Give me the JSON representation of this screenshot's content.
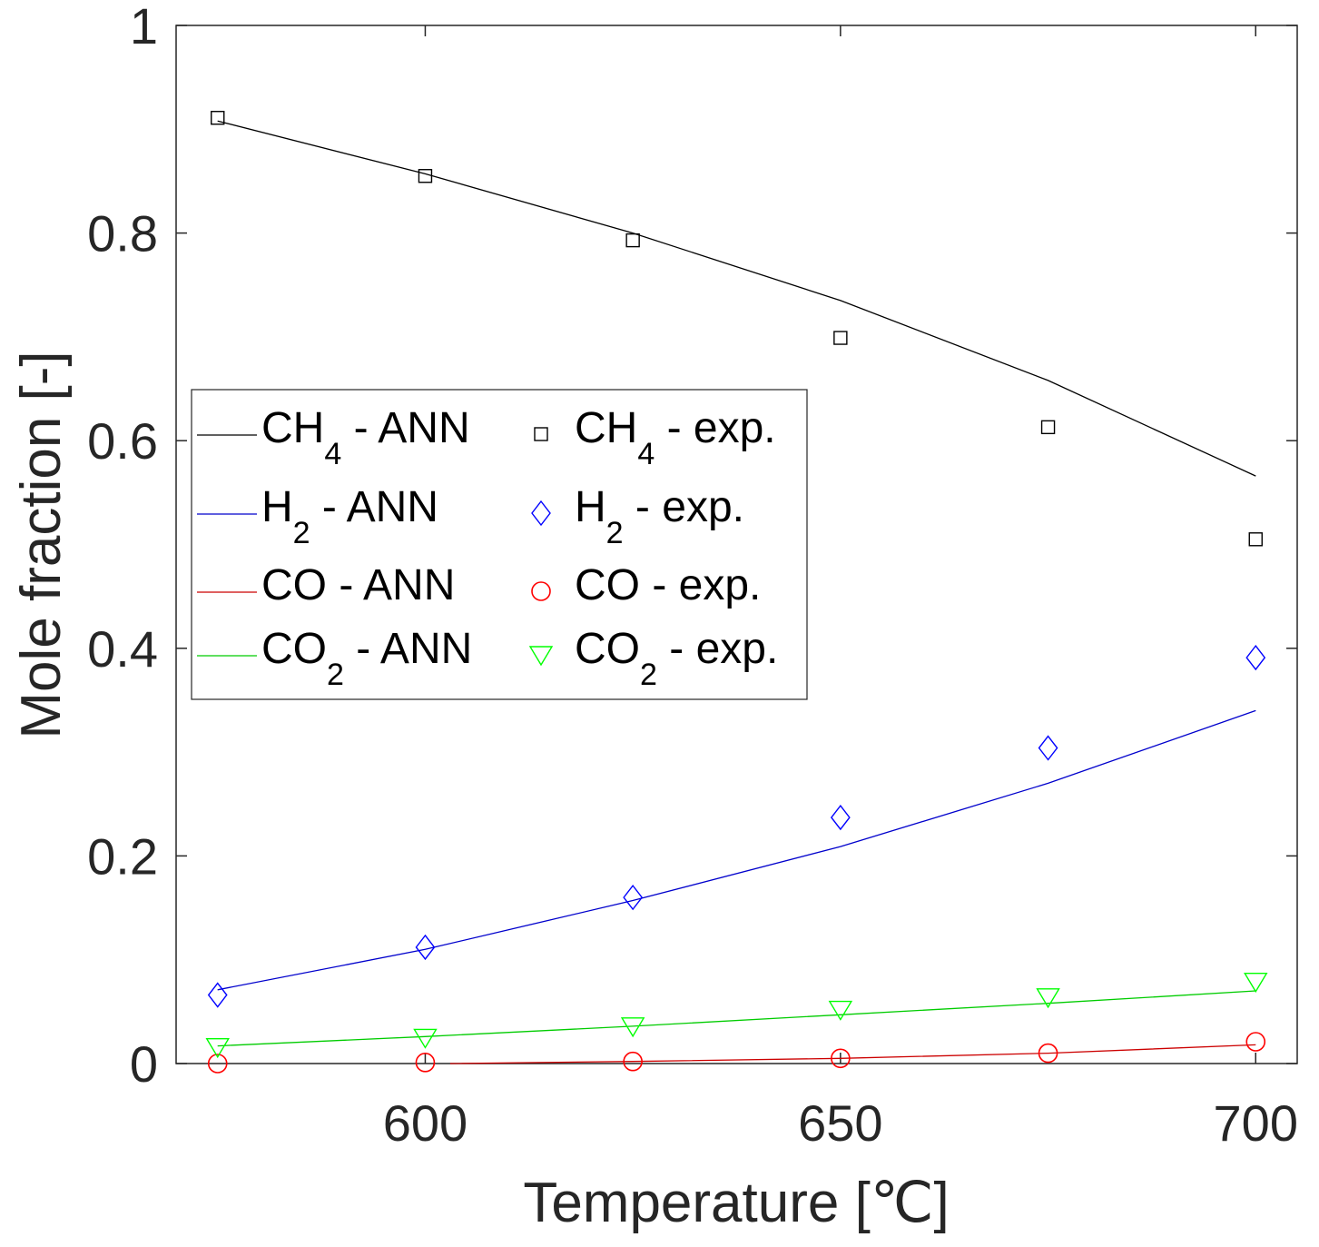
{
  "chart_data": {
    "type": "line",
    "title": "",
    "xlabel": "Temperature [℃]",
    "ylabel": "Mole fraction [-]",
    "xlim": [
      570,
      705
    ],
    "ylim": [
      0,
      1
    ],
    "xticks": [
      600,
      650,
      700
    ],
    "xtick_labels": [
      "600",
      "650",
      "700"
    ],
    "yticks": [
      0,
      0.2,
      0.4,
      0.6,
      0.8,
      1
    ],
    "ytick_labels": [
      "0",
      "0.2",
      "0.4",
      "0.6",
      "0.8",
      "1"
    ],
    "grid": false,
    "legend_position": "upper-left",
    "x": [
      575,
      600,
      625,
      650,
      675,
      700
    ],
    "series": [
      {
        "name": "CH4 - ANN",
        "kind": "line",
        "color": "#000000",
        "x": [
          575,
          600,
          625,
          650,
          675,
          700
        ],
        "values": [
          0.908,
          0.857,
          0.8,
          0.735,
          0.658,
          0.566
        ]
      },
      {
        "name": "H2 - ANN",
        "kind": "line",
        "color": "#0000cc",
        "x": [
          575,
          600,
          625,
          650,
          675,
          700
        ],
        "values": [
          0.071,
          0.11,
          0.157,
          0.209,
          0.27,
          0.34
        ]
      },
      {
        "name": "CO - ANN",
        "kind": "line",
        "color": "#cc0000",
        "x": [
          603,
          625,
          650,
          675,
          700
        ],
        "values": [
          0.0,
          0.002,
          0.005,
          0.01,
          0.018
        ]
      },
      {
        "name": "CO2 - ANN",
        "kind": "line",
        "color": "#00cc00",
        "x": [
          575,
          600,
          625,
          650,
          675,
          700
        ],
        "values": [
          0.017,
          0.026,
          0.036,
          0.047,
          0.058,
          0.07
        ]
      },
      {
        "name": "CH4 - exp.",
        "kind": "marker",
        "marker": "square",
        "color": "#000000",
        "x": [
          575,
          600,
          625,
          650,
          675,
          700
        ],
        "values": [
          0.911,
          0.855,
          0.793,
          0.699,
          0.613,
          0.505
        ]
      },
      {
        "name": "H2 - exp.",
        "kind": "marker",
        "marker": "diamond",
        "color": "#0000ff",
        "x": [
          575,
          600,
          625,
          650,
          675,
          700
        ],
        "values": [
          0.066,
          0.112,
          0.16,
          0.237,
          0.304,
          0.391
        ]
      },
      {
        "name": "CO - exp.",
        "kind": "marker",
        "marker": "circle",
        "color": "#ff0000",
        "x": [
          575,
          600,
          625,
          650,
          675,
          700
        ],
        "values": [
          0.0,
          0.001,
          0.002,
          0.005,
          0.01,
          0.021
        ]
      },
      {
        "name": "CO2 - exp.",
        "kind": "marker",
        "marker": "triangle-down",
        "color": "#00ff00",
        "x": [
          575,
          600,
          625,
          650,
          675,
          700
        ],
        "values": [
          0.016,
          0.025,
          0.036,
          0.052,
          0.064,
          0.079
        ]
      }
    ],
    "legend": [
      {
        "base": "CH",
        "sub": "4",
        "suffix": " - ANN"
      },
      {
        "base": "H",
        "sub": "2",
        "suffix": " - ANN"
      },
      {
        "base": "CO",
        "sub": "",
        "suffix": " - ANN"
      },
      {
        "base": "CO",
        "sub": "2",
        "suffix": " - ANN"
      },
      {
        "base": "CH",
        "sub": "4",
        "suffix": " - exp."
      },
      {
        "base": "H",
        "sub": "2",
        "suffix": " - exp."
      },
      {
        "base": "CO",
        "sub": "",
        "suffix": " - exp."
      },
      {
        "base": "CO",
        "sub": "2",
        "suffix": " - exp."
      }
    ]
  }
}
